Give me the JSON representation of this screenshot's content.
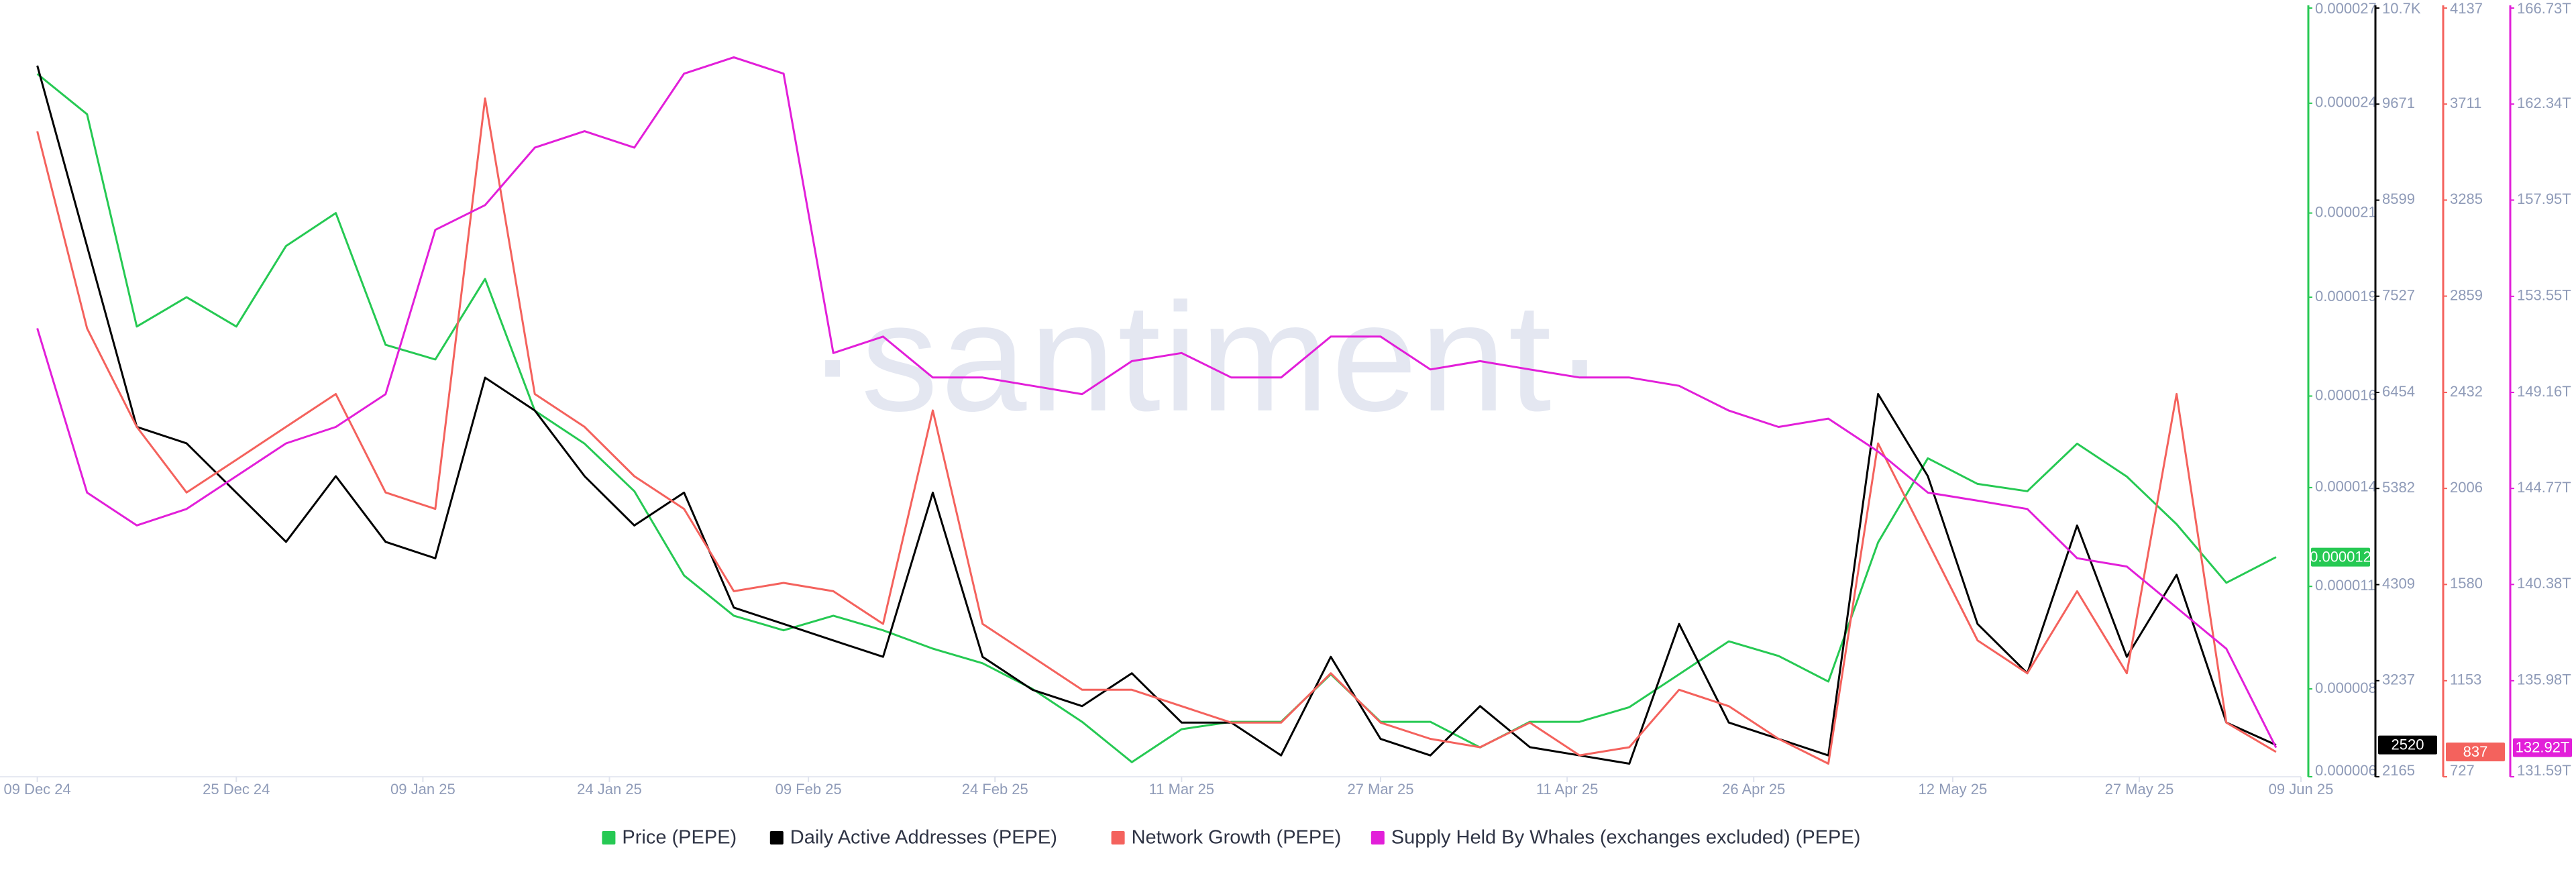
{
  "chart_data": {
    "type": "line",
    "watermark": "·santiment·",
    "x": [
      "2024-12-09",
      "2024-12-13",
      "2024-12-17",
      "2024-12-21",
      "2024-12-25",
      "2024-12-29",
      "2025-01-02",
      "2025-01-06",
      "2025-01-10",
      "2025-01-14",
      "2025-01-18",
      "2025-01-22",
      "2025-01-26",
      "2025-01-30",
      "2025-02-03",
      "2025-02-07",
      "2025-02-11",
      "2025-02-15",
      "2025-02-19",
      "2025-02-23",
      "2025-02-27",
      "2025-03-03",
      "2025-03-07",
      "2025-03-11",
      "2025-03-15",
      "2025-03-19",
      "2025-03-23",
      "2025-03-27",
      "2025-03-31",
      "2025-04-04",
      "2025-04-08",
      "2025-04-12",
      "2025-04-16",
      "2025-04-20",
      "2025-04-24",
      "2025-04-28",
      "2025-05-02",
      "2025-05-06",
      "2025-05-10",
      "2025-05-14",
      "2025-05-18",
      "2025-05-22",
      "2025-05-26",
      "2025-05-30",
      "2025-06-03",
      "2025-06-07"
    ],
    "xlim": [
      "2024-12-06",
      "2025-06-09"
    ],
    "xticks": [
      {
        "value": "2024-12-09",
        "label": "09 Dec 24"
      },
      {
        "value": "2024-12-25",
        "label": "25 Dec 24"
      },
      {
        "value": "2025-01-09",
        "label": "09 Jan 25"
      },
      {
        "value": "2025-01-24",
        "label": "24 Jan 25"
      },
      {
        "value": "2025-02-09",
        "label": "09 Feb 25"
      },
      {
        "value": "2025-02-24",
        "label": "24 Feb 25"
      },
      {
        "value": "2025-03-11",
        "label": "11 Mar 25"
      },
      {
        "value": "2025-03-27",
        "label": "27 Mar 25"
      },
      {
        "value": "2025-04-11",
        "label": "11 Apr 25"
      },
      {
        "value": "2025-04-26",
        "label": "26 Apr 25"
      },
      {
        "value": "2025-05-12",
        "label": "12 May 25"
      },
      {
        "value": "2025-05-27",
        "label": "27 May 25"
      },
      {
        "value": "2025-06-09",
        "label": "09 Jun 25"
      }
    ],
    "legend": "bottom",
    "series": [
      {
        "name": "Price (PEPE)",
        "color": "#26c953",
        "values": [
          2.52e-05,
          2.41e-05,
          1.83e-05,
          1.91e-05,
          1.83e-05,
          2.05e-05,
          2.14e-05,
          1.78e-05,
          1.74e-05,
          1.96e-05,
          1.6e-05,
          1.51e-05,
          1.38e-05,
          1.15e-05,
          1.04e-05,
          1e-05,
          1.04e-05,
          1e-05,
          9.5e-06,
          9.1e-06,
          8.4e-06,
          7.5e-06,
          6.4e-06,
          7.3e-06,
          7.5e-06,
          7.5e-06,
          8.8e-06,
          7.5e-06,
          7.5e-06,
          6.8e-06,
          7.5e-06,
          7.5e-06,
          7.9e-06,
          8.8e-06,
          9.7e-06,
          9.3e-06,
          8.6e-06,
          1.24e-05,
          1.47e-05,
          1.4e-05,
          1.38e-05,
          1.51e-05,
          1.42e-05,
          1.29e-05,
          1.13e-05,
          1.2e-05
        ],
        "last_value_label": "0.000012",
        "ylim": [
          6e-06,
          2.7e-05
        ],
        "yticks": [
          {
            "value": 6e-06,
            "label": "0.000006"
          },
          {
            "value": 8.4e-06,
            "label": "0.000008"
          },
          {
            "value": 1.12e-05,
            "label": "0.000011"
          },
          {
            "value": 1.39e-05,
            "label": "0.000014"
          },
          {
            "value": 1.64e-05,
            "label": "0.000016"
          },
          {
            "value": 1.91e-05,
            "label": "0.000019"
          },
          {
            "value": 2.14e-05,
            "label": "0.000021"
          },
          {
            "value": 2.44e-05,
            "label": "0.000024"
          },
          {
            "value": 2.7e-05,
            "label": "0.000027"
          }
        ]
      },
      {
        "name": "Daily Active Addresses (PEPE)",
        "color": "#000000",
        "values": [
          10101,
          8085,
          6069,
          5886,
          5336,
          4786,
          5519,
          4786,
          4603,
          6619,
          6252,
          5519,
          4969,
          5336,
          4053,
          3870,
          3686,
          3503,
          5336,
          3503,
          3136,
          2953,
          3320,
          2770,
          2770,
          2403,
          3503,
          2587,
          2403,
          2953,
          2495,
          2403,
          2311,
          3870,
          2770,
          2587,
          2403,
          6436,
          5519,
          3870,
          3320,
          4969,
          3503,
          4419,
          2770,
          2520
        ],
        "last_value_label": "2520",
        "ylim": [
          2165,
          10743
        ],
        "yticks": [
          2165,
          3237,
          4309,
          5382,
          6454,
          7527,
          8599,
          9671,
          {
            "value": 10743,
            "label": "10.7K"
          }
        ]
      },
      {
        "name": "Network Growth (PEPE)",
        "color": "#f4625d",
        "values": [
          3590,
          2716,
          2279,
          1988,
          2133,
          2279,
          2425,
          1988,
          1915,
          3736,
          2425,
          2279,
          2060,
          1915,
          1550,
          1587,
          1550,
          1405,
          2352,
          1405,
          1259,
          1113,
          1113,
          1040,
          967,
          967,
          1186,
          967,
          895,
          858,
          967,
          822,
          858,
          1113,
          1040,
          895,
          785,
          2206,
          1769,
          1332,
          1186,
          1550,
          1186,
          2425,
          967,
          837
        ],
        "last_value_label": "837",
        "ylim": [
          727,
          4137
        ],
        "yticks": [
          727,
          1153,
          1580,
          2006,
          2432,
          2859,
          3285,
          3711,
          4137
        ]
      },
      {
        "name": "Supply Held By Whales (exchanges excluded) (PEPE)",
        "color": "#e21fd9",
        "values": [
          152.09,
          144.58,
          143.08,
          143.83,
          145.33,
          146.83,
          147.58,
          149.08,
          156.59,
          157.72,
          160.35,
          161.1,
          160.35,
          163.73,
          164.48,
          163.73,
          150.96,
          151.71,
          149.84,
          149.84,
          149.46,
          149.08,
          150.59,
          150.96,
          149.84,
          149.84,
          151.71,
          151.71,
          150.21,
          150.59,
          150.21,
          149.84,
          149.84,
          149.46,
          148.33,
          147.58,
          147.96,
          146.46,
          144.58,
          144.21,
          143.83,
          141.58,
          141.2,
          139.32,
          137.44,
          132.92
        ],
        "last_value_label": "132.92T",
        "ylim": [
          131.59,
          166.73
        ],
        "yticks": [
          {
            "value": 131.59,
            "label": "131.59T"
          },
          {
            "value": 135.98,
            "label": "135.98T"
          },
          {
            "value": 140.38,
            "label": "140.38T"
          },
          {
            "value": 144.77,
            "label": "144.77T"
          },
          {
            "value": 149.16,
            "label": "149.16T"
          },
          {
            "value": 153.55,
            "label": "153.55T"
          },
          {
            "value": 157.95,
            "label": "157.95T"
          },
          {
            "value": 162.34,
            "label": "162.34T"
          },
          {
            "value": 166.73,
            "label": "166.73T"
          }
        ]
      }
    ]
  }
}
